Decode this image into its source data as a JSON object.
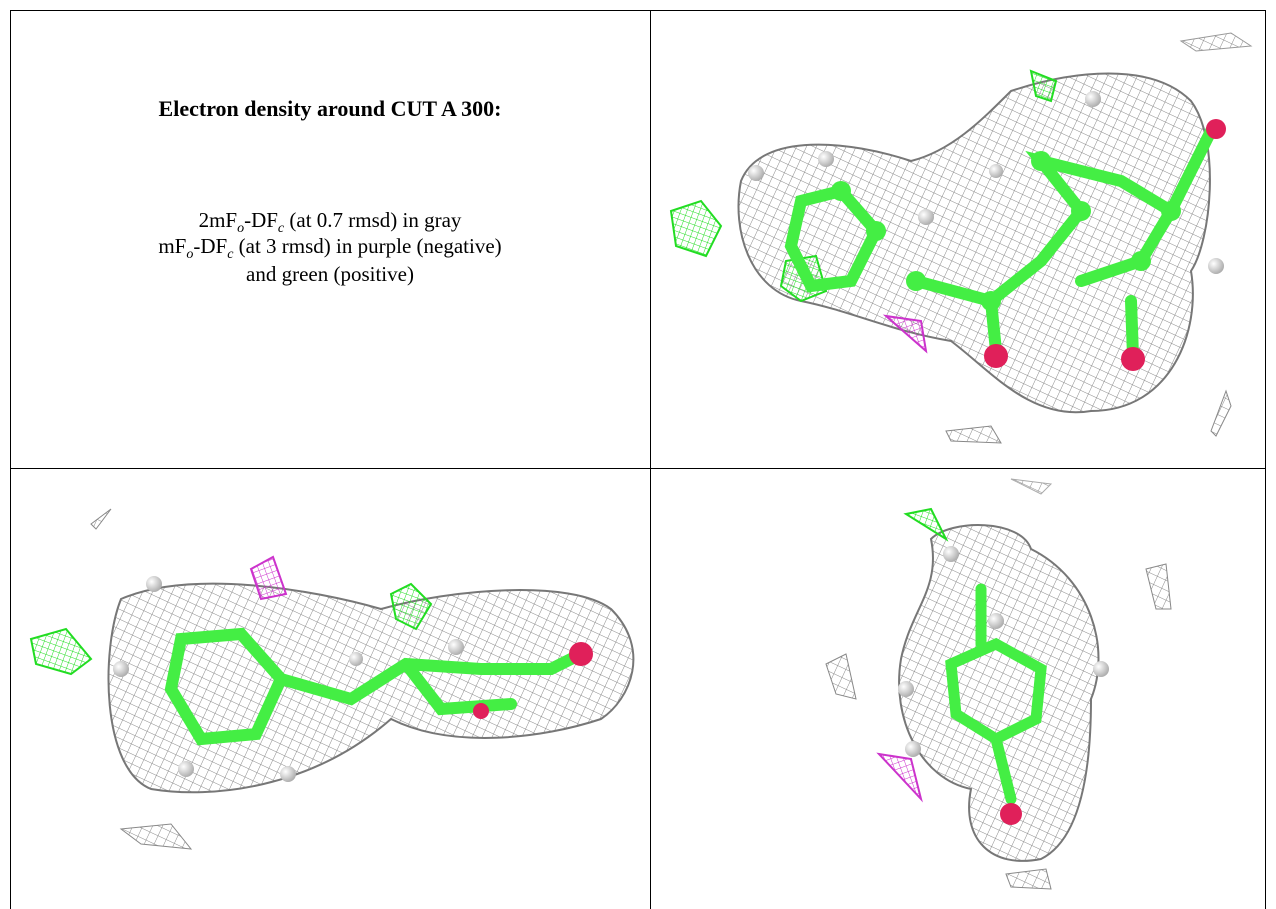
{
  "caption": {
    "title": "Electron density around CUT A 300:",
    "lines": [
      [
        "2mF",
        "o",
        "-DF",
        "c",
        " (at 0.7 rmsd) in gray"
      ],
      [
        "mF",
        "o",
        "-DF",
        "c",
        " (at 3 rmsd) in purple (negative)"
      ],
      [
        "and green (positive)"
      ]
    ]
  }
}
